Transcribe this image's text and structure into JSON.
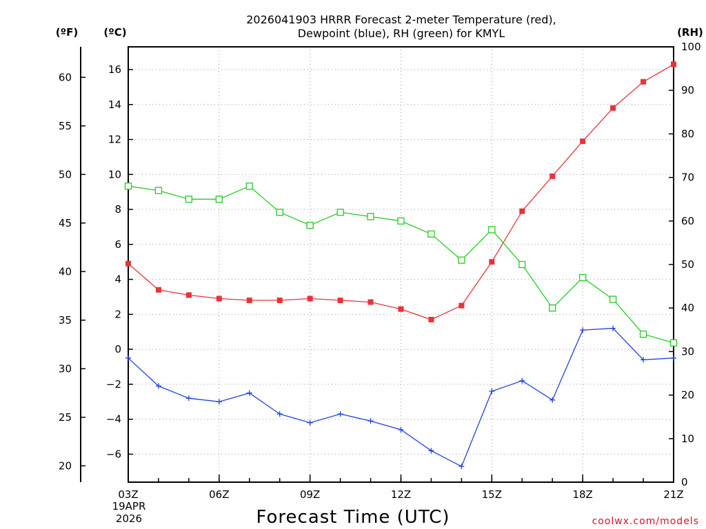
{
  "chart_data": {
    "type": "line",
    "title_line1": "2026041903 HRRR Forecast 2-meter Temperature (red),",
    "title_line2": "Dewpoint (blue), RH (green) for KMYL",
    "xlabel": "Forecast Time (UTC)",
    "credit": "coolwx.com/models",
    "date_label_line1": "19APR",
    "date_label_line2": "2026",
    "units": {
      "fahrenheit": "(ºF)",
      "celsius": "(ºC)",
      "rh": "(RH)"
    },
    "x_hours": [
      3,
      4,
      5,
      6,
      7,
      8,
      9,
      10,
      11,
      12,
      13,
      14,
      15,
      16,
      17,
      18,
      19,
      20,
      21
    ],
    "x_ticks": [
      {
        "hour": 3,
        "label": "03Z"
      },
      {
        "hour": 6,
        "label": "06Z"
      },
      {
        "hour": 9,
        "label": "09Z"
      },
      {
        "hour": 12,
        "label": "12Z"
      },
      {
        "hour": 15,
        "label": "15Z"
      },
      {
        "hour": 18,
        "label": "18Z"
      },
      {
        "hour": 21,
        "label": "21Z"
      }
    ],
    "xlim": [
      3,
      21
    ],
    "celsius_axis": {
      "ylim": [
        -7.6,
        17.3
      ],
      "ticks": [
        -6,
        -4,
        -2,
        0,
        2,
        4,
        6,
        8,
        10,
        12,
        14,
        16
      ]
    },
    "fahrenheit_axis": {
      "ticks": [
        20,
        25,
        30,
        35,
        40,
        45,
        50,
        55,
        60
      ]
    },
    "rh_axis": {
      "ylim": [
        0,
        100
      ],
      "ticks": [
        0,
        10,
        20,
        30,
        40,
        50,
        60,
        70,
        80,
        90,
        100
      ]
    },
    "series": [
      {
        "name": "Temperature",
        "axis": "celsius",
        "color": "#e8333a",
        "marker": "filled-square",
        "values": [
          4.9,
          3.4,
          3.1,
          2.9,
          2.8,
          2.8,
          2.9,
          2.8,
          2.7,
          2.3,
          1.7,
          2.5,
          5.0,
          7.9,
          9.9,
          11.9,
          13.8,
          15.3,
          16.3
        ]
      },
      {
        "name": "Dewpoint",
        "axis": "celsius",
        "color": "#2040e0",
        "marker": "plus",
        "values": [
          -0.5,
          -2.1,
          -2.8,
          -3.0,
          -2.5,
          -3.7,
          -4.2,
          -3.7,
          -4.1,
          -4.6,
          -5.8,
          -6.7,
          -2.4,
          -1.8,
          -2.9,
          1.1,
          1.2,
          -0.6,
          -0.5
        ]
      },
      {
        "name": "RH",
        "axis": "rh",
        "color": "#22cc22",
        "marker": "open-square",
        "values": [
          68,
          67,
          65,
          65,
          68,
          62,
          59,
          62,
          61,
          60,
          57,
          51,
          58,
          50,
          40,
          47,
          42,
          34,
          32
        ]
      }
    ]
  }
}
